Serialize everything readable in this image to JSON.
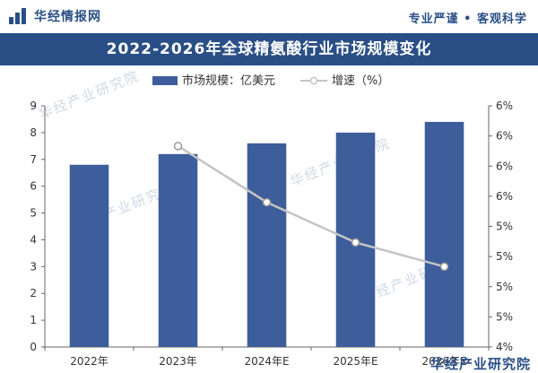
{
  "header": {
    "brand": "华经情报网",
    "tagline": "专业严谨 • 客观科学",
    "footer_brand": "华经产业研究院"
  },
  "watermark": "华经产业研究院",
  "colors": {
    "brand": "#2a4f86",
    "bar": "#3d5d9b",
    "line": "#c4c4c4"
  },
  "chart_data": {
    "type": "bar",
    "title": "2022-2026年全球精氨酸行业市场规模变化",
    "categories": [
      "2022年",
      "2023年",
      "2024年E",
      "2025年E",
      "2026年E"
    ],
    "series": [
      {
        "name": "市场规模：亿美元",
        "type": "bar",
        "axis": "left",
        "values": [
          6.8,
          7.2,
          7.6,
          8.0,
          8.4
        ]
      },
      {
        "name": "增速（%）",
        "type": "line",
        "axis": "right",
        "values": [
          null,
          6.5,
          5.8,
          5.3,
          5.0
        ]
      }
    ],
    "y_left": {
      "ylim": [
        0,
        9
      ],
      "ticks": [
        "0",
        "1",
        "2",
        "3",
        "4",
        "5",
        "6",
        "7",
        "8",
        "9"
      ]
    },
    "y_right": {
      "ylim": [
        4,
        7
      ],
      "ticks": [
        "4%",
        "5%",
        "5%",
        "5%",
        "5%",
        "6%",
        "6%",
        "6%",
        "6%"
      ]
    },
    "legend": "top-center"
  }
}
